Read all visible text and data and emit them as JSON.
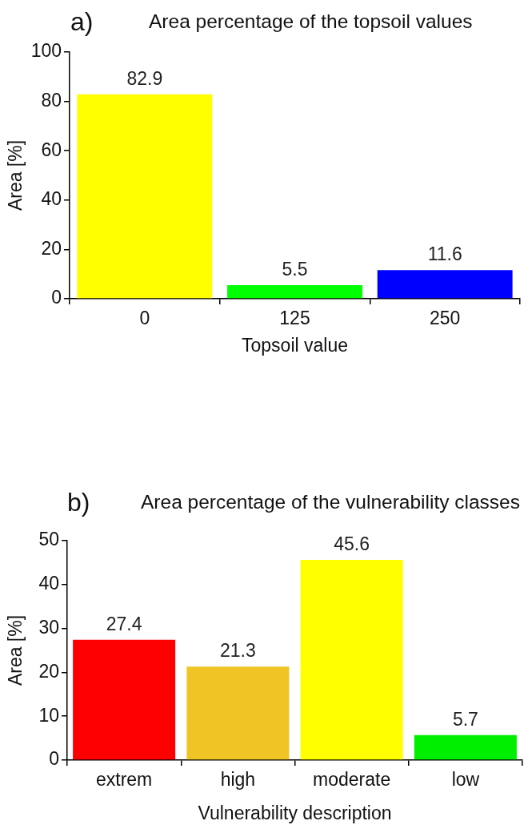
{
  "chart_data": [
    {
      "type": "bar",
      "title": "Area percentage of the topsoil values",
      "annotations": [
        "a)"
      ],
      "xlabel": "Topsoil value",
      "ylabel": "Area [%]",
      "categories": [
        "0",
        "125",
        "250"
      ],
      "values": [
        82.9,
        5.5,
        11.6
      ],
      "colors": [
        "#ffff00",
        "#00ff00",
        "#0000ff"
      ],
      "ylim": [
        0,
        100
      ],
      "yticks": [
        0,
        20,
        40,
        60,
        80,
        100
      ],
      "data_labels": true
    },
    {
      "type": "bar",
      "title": "Area percentage of the vulnerability classes",
      "annotations": [
        "b)"
      ],
      "xlabel": "Vulnerability description",
      "ylabel": "Area [%]",
      "categories": [
        "extrem",
        "high",
        "moderate",
        "low"
      ],
      "values": [
        27.4,
        21.3,
        45.6,
        5.7
      ],
      "colors": [
        "#ff0000",
        "#f0c424",
        "#ffff00",
        "#00ee00"
      ],
      "ylim": [
        0,
        50
      ],
      "yticks": [
        0,
        10,
        20,
        30,
        40,
        50
      ],
      "data_labels": true
    }
  ]
}
